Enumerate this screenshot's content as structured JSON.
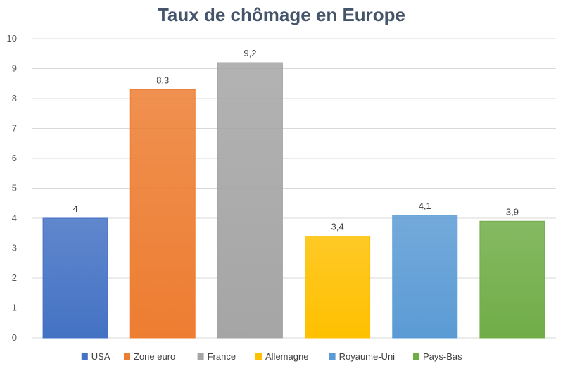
{
  "chart_data": {
    "type": "bar",
    "title": "Taux de chômage en Europe",
    "categories": [
      "USA",
      "Zone euro",
      "France",
      "Allemagne",
      "Royaume-Uni",
      "Pays-Bas"
    ],
    "values": [
      4,
      8.3,
      9.2,
      3.4,
      4.1,
      3.9
    ],
    "value_labels": [
      "4",
      "8,3",
      "9,2",
      "3,4",
      "4,1",
      "3,9"
    ],
    "colors": [
      "#4472c4",
      "#ed7d31",
      "#a5a5a5",
      "#ffc000",
      "#5b9bd5",
      "#70ad47"
    ],
    "ylim": [
      0,
      10
    ],
    "yticks": [
      0,
      1,
      2,
      3,
      4,
      5,
      6,
      7,
      8,
      9,
      10
    ],
    "grid": true,
    "legend_position": "bottom",
    "xlabel": "",
    "ylabel": ""
  }
}
